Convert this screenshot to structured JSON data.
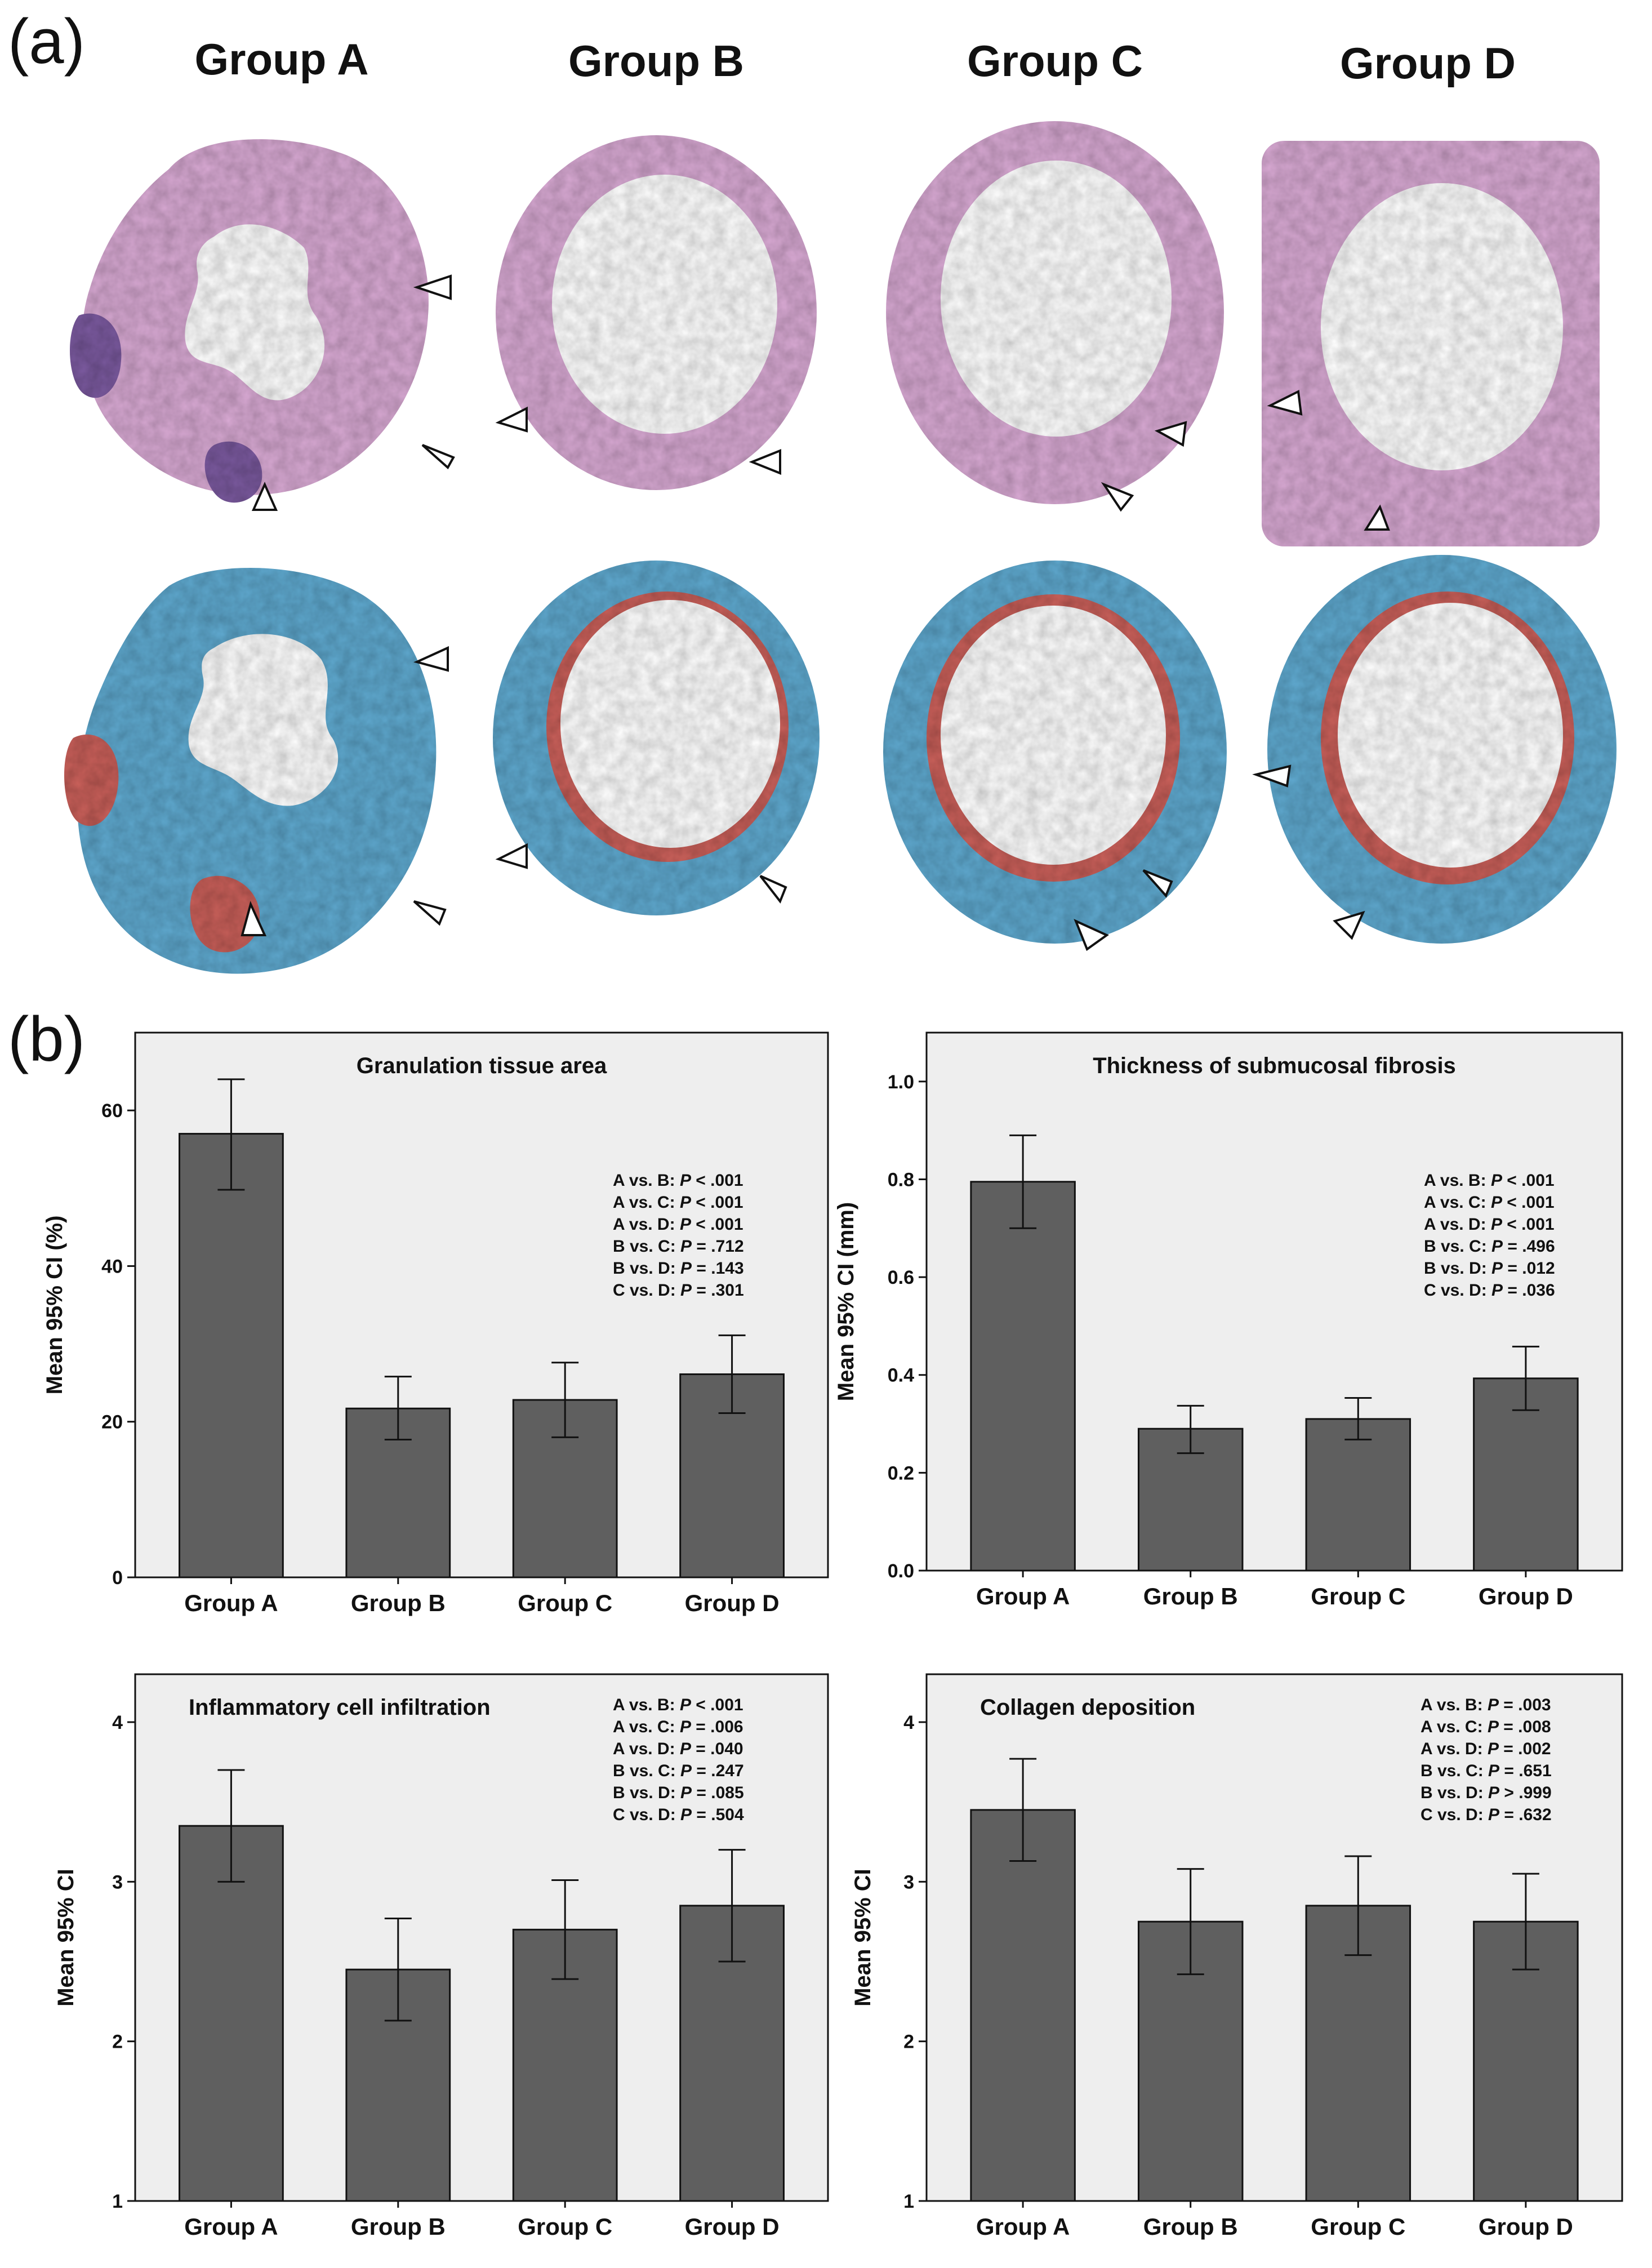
{
  "figure": {
    "panel_a_label": "(a)",
    "panel_b_label": "(b)",
    "group_headers": [
      "Group A",
      "Group B",
      "Group C",
      "Group D"
    ],
    "micrograph_rows": [
      {
        "stain": "hematoxylin-eosin",
        "colors": {
          "background": "#ffffff",
          "tissue": "#d8a9d3",
          "inner": "#b98ec2",
          "accent": "#7b5a9f"
        }
      },
      {
        "stain": "masson-trichrome",
        "colors": {
          "background": "#ffffff",
          "tissue": "#5fa9cf",
          "inner": "#c9605a",
          "accent": "#3d89bd"
        }
      }
    ]
  },
  "chart_data": [
    {
      "type": "bar",
      "title": "Granulation tissue area",
      "ylabel": "Mean 95% CI (%)",
      "xlabel": "",
      "categories": [
        "Group A",
        "Group B",
        "Group C",
        "Group D"
      ],
      "values": [
        57,
        21.7,
        22.8,
        26.1
      ],
      "ci_low": [
        49.8,
        17.7,
        18,
        21.1
      ],
      "ci_high": [
        64,
        25.8,
        27.6,
        31.1
      ],
      "ylim": [
        0,
        70
      ],
      "yticks": [
        0,
        20,
        40,
        60
      ],
      "ytick_labels": [
        "0",
        "20",
        "40",
        "60"
      ],
      "stats_position": "top-right",
      "stats": [
        {
          "label": "A vs. B:",
          "p": "P",
          "rel": "<",
          "value": ".001"
        },
        {
          "label": "A vs. C:",
          "p": "P",
          "rel": "<",
          "value": ".001"
        },
        {
          "label": "A vs. D:",
          "p": "P",
          "rel": "<",
          "value": ".001"
        },
        {
          "label": "B vs. C:",
          "p": "P",
          "rel": "=",
          "value": ".712"
        },
        {
          "label": "B vs. D:",
          "p": "P",
          "rel": "=",
          "value": ".143"
        },
        {
          "label": "C vs. D:",
          "p": "P",
          "rel": "=",
          "value": ".301"
        }
      ]
    },
    {
      "type": "bar",
      "title": "Thickness of submucosal fibrosis",
      "ylabel": "Mean 95% CI (mm)",
      "xlabel": "",
      "categories": [
        "Group A",
        "Group B",
        "Group C",
        "Group D"
      ],
      "values": [
        0.795,
        0.29,
        0.31,
        0.393
      ],
      "ci_low": [
        0.7,
        0.24,
        0.268,
        0.328
      ],
      "ci_high": [
        0.89,
        0.337,
        0.353,
        0.458
      ],
      "ylim": [
        0,
        1.1
      ],
      "yticks": [
        0,
        0.2,
        0.4,
        0.6,
        0.8,
        1.0
      ],
      "ytick_labels": [
        "0.0",
        "0.2",
        "0.4",
        "0.6",
        "0.8",
        "1.0"
      ],
      "stats_position": "top-right",
      "stats": [
        {
          "label": "A vs. B:",
          "p": "P",
          "rel": "<",
          "value": ".001"
        },
        {
          "label": "A vs. C:",
          "p": "P",
          "rel": "<",
          "value": ".001"
        },
        {
          "label": "A vs. D:",
          "p": "P",
          "rel": "<",
          "value": ".001"
        },
        {
          "label": "B vs. C:",
          "p": "P",
          "rel": "=",
          "value": ".496"
        },
        {
          "label": "B vs. D:",
          "p": "P",
          "rel": "=",
          "value": ".012"
        },
        {
          "label": "C vs. D:",
          "p": "P",
          "rel": "=",
          "value": ".036"
        }
      ]
    },
    {
      "type": "bar",
      "title": "Inflammatory cell infiltration",
      "ylabel": "Mean 95% CI",
      "xlabel": "",
      "categories": [
        "Group A",
        "Group B",
        "Group C",
        "Group D"
      ],
      "values": [
        3.35,
        2.45,
        2.7,
        2.85
      ],
      "ci_low": [
        3.0,
        2.13,
        2.39,
        2.5
      ],
      "ci_high": [
        3.7,
        2.77,
        3.01,
        3.2
      ],
      "ylim": [
        1,
        4.3
      ],
      "yticks": [
        1,
        2,
        3,
        4
      ],
      "ytick_labels": [
        "1",
        "2",
        "3",
        "4"
      ],
      "stats_position": "top-right",
      "stats": [
        {
          "label": "A vs. B:",
          "p": "P",
          "rel": "<",
          "value": ".001"
        },
        {
          "label": "A vs. C:",
          "p": "P",
          "rel": "=",
          "value": ".006"
        },
        {
          "label": "A vs. D:",
          "p": "P",
          "rel": "=",
          "value": ".040"
        },
        {
          "label": "B vs. C:",
          "p": "P",
          "rel": "=",
          "value": ".247"
        },
        {
          "label": "B vs. D:",
          "p": "P",
          "rel": "=",
          "value": ".085"
        },
        {
          "label": "C vs. D:",
          "p": "P",
          "rel": "=",
          "value": ".504"
        }
      ]
    },
    {
      "type": "bar",
      "title": "Collagen deposition",
      "ylabel": "Mean 95% CI",
      "xlabel": "",
      "categories": [
        "Group A",
        "Group B",
        "Group C",
        "Group D"
      ],
      "values": [
        3.45,
        2.75,
        2.85,
        2.75
      ],
      "ci_low": [
        3.13,
        2.42,
        2.54,
        2.45
      ],
      "ci_high": [
        3.77,
        3.08,
        3.16,
        3.05
      ],
      "ylim": [
        1,
        4.3
      ],
      "yticks": [
        1,
        2,
        3,
        4
      ],
      "ytick_labels": [
        "1",
        "2",
        "3",
        "4"
      ],
      "stats_position": "top-right",
      "stats": [
        {
          "label": "A vs. B:",
          "p": "P",
          "rel": "=",
          "value": ".003"
        },
        {
          "label": "A vs. C:",
          "p": "P",
          "rel": "=",
          "value": ".008"
        },
        {
          "label": "A vs. D:",
          "p": "P",
          "rel": "=",
          "value": ".002"
        },
        {
          "label": "B vs. C:",
          "p": "P",
          "rel": "=",
          "value": ".651"
        },
        {
          "label": "B vs. D:",
          "p": "P",
          "rel": ">",
          "value": ".999"
        },
        {
          "label": "C vs. D:",
          "p": "P",
          "rel": "=",
          "value": ".632"
        }
      ]
    }
  ],
  "style": {
    "bar_fill": "#5f5f5f",
    "plot_background": "#eeeeee",
    "axis_color": "#111111",
    "figure_background": "#ffffff"
  }
}
